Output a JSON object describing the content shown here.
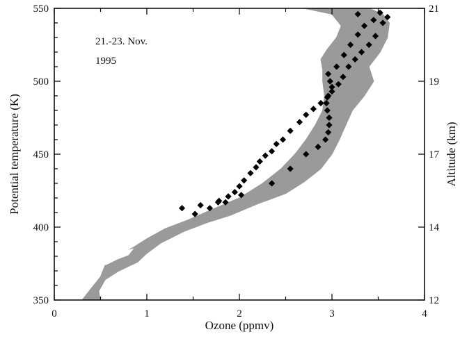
{
  "chart_data": {
    "type": "scatter",
    "xlabel": "Ozone (ppmv)",
    "ylabel": "Potential temperature (K)",
    "y2label": "Altitude (km)",
    "xlim": [
      0,
      4
    ],
    "ylim": [
      350,
      550
    ],
    "x_ticks": [
      "0",
      "1",
      "2",
      "3",
      "4"
    ],
    "y_ticks": [
      "350",
      "400",
      "450",
      "500",
      "550"
    ],
    "y2_ticks": [
      {
        "label": "12",
        "at_theta": 350
      },
      {
        "label": "14",
        "at_theta": 400
      },
      {
        "label": "17",
        "at_theta": 450
      },
      {
        "label": "19",
        "at_theta": 500
      },
      {
        "label": "21",
        "at_theta": 550
      }
    ],
    "annotation": [
      "21.-23. Nov.",
      "1995"
    ],
    "grid": false,
    "band_color": "#9a9a9a",
    "point_color": "#000000",
    "bands": [
      {
        "left": [
          [
            0.3,
            350
          ],
          [
            0.4,
            358
          ],
          [
            0.5,
            366
          ],
          [
            0.55,
            374
          ],
          [
            0.7,
            381
          ],
          [
            0.85,
            386
          ],
          [
            1.0,
            392
          ],
          [
            1.2,
            399
          ],
          [
            1.45,
            405
          ],
          [
            1.7,
            412
          ],
          [
            2.0,
            420
          ],
          [
            2.25,
            430
          ],
          [
            2.45,
            440
          ],
          [
            2.6,
            450
          ],
          [
            2.72,
            460
          ],
          [
            2.82,
            470
          ],
          [
            2.9,
            480
          ],
          [
            2.92,
            490
          ],
          [
            2.9,
            500
          ],
          [
            2.9,
            508
          ],
          [
            2.88,
            515
          ],
          [
            2.95,
            522
          ],
          [
            3.05,
            530
          ],
          [
            3.1,
            538
          ],
          [
            3.0,
            546
          ],
          [
            2.7,
            550
          ]
        ],
        "right": [
          [
            0.5,
            350
          ],
          [
            0.48,
            356
          ],
          [
            0.55,
            364
          ],
          [
            0.7,
            370
          ],
          [
            0.9,
            376
          ],
          [
            1.0,
            382
          ],
          [
            1.15,
            389
          ],
          [
            1.4,
            397
          ],
          [
            1.65,
            403
          ],
          [
            1.9,
            408
          ],
          [
            2.2,
            416
          ],
          [
            2.5,
            423
          ],
          [
            2.7,
            431
          ],
          [
            2.88,
            440
          ],
          [
            3.0,
            450
          ],
          [
            3.08,
            460
          ],
          [
            3.15,
            470
          ],
          [
            3.22,
            480
          ],
          [
            3.35,
            490
          ],
          [
            3.45,
            500
          ],
          [
            3.4,
            510
          ],
          [
            3.52,
            520
          ],
          [
            3.6,
            530
          ],
          [
            3.62,
            540
          ],
          [
            3.55,
            546
          ],
          [
            3.4,
            550
          ]
        ]
      },
      {
        "left": [
          [
            0.55,
            374
          ],
          [
            0.68,
            378
          ],
          [
            0.8,
            381
          ]
        ],
        "right": [
          [
            0.55,
            374
          ],
          [
            0.72,
            383
          ],
          [
            0.85,
            385
          ]
        ]
      }
    ],
    "points": [
      [
        1.38,
        413
      ],
      [
        1.52,
        409
      ],
      [
        1.58,
        415
      ],
      [
        1.68,
        413
      ],
      [
        1.78,
        418
      ],
      [
        1.85,
        417
      ],
      [
        1.88,
        421
      ],
      [
        1.95,
        424
      ],
      [
        2.0,
        428
      ],
      [
        2.05,
        432
      ],
      [
        2.12,
        437
      ],
      [
        2.18,
        441
      ],
      [
        2.22,
        445
      ],
      [
        2.28,
        449
      ],
      [
        2.35,
        452
      ],
      [
        2.4,
        457
      ],
      [
        2.47,
        460
      ],
      [
        2.55,
        466
      ],
      [
        2.65,
        472
      ],
      [
        2.72,
        477
      ],
      [
        2.8,
        481
      ],
      [
        2.88,
        485
      ],
      [
        2.95,
        489
      ],
      [
        3.0,
        493
      ],
      [
        3.07,
        498
      ],
      [
        3.12,
        503
      ],
      [
        3.18,
        510
      ],
      [
        3.25,
        515
      ],
      [
        3.32,
        520
      ],
      [
        3.4,
        525
      ],
      [
        3.47,
        531
      ],
      [
        3.55,
        540
      ],
      [
        3.6,
        544
      ],
      [
        1.77,
        417
      ],
      [
        2.02,
        422
      ],
      [
        2.35,
        430
      ],
      [
        2.55,
        440
      ],
      [
        2.72,
        450
      ],
      [
        2.85,
        455
      ],
      [
        2.93,
        460
      ],
      [
        2.96,
        465
      ],
      [
        2.97,
        470
      ],
      [
        2.97,
        475
      ],
      [
        2.95,
        480
      ],
      [
        2.94,
        485
      ],
      [
        2.96,
        490
      ],
      [
        3.0,
        496
      ],
      [
        2.98,
        500
      ],
      [
        2.96,
        505
      ],
      [
        3.05,
        510
      ],
      [
        3.13,
        518
      ],
      [
        3.2,
        525
      ],
      [
        3.28,
        532
      ],
      [
        3.35,
        538
      ],
      [
        3.45,
        542
      ],
      [
        3.52,
        547
      ],
      [
        3.28,
        546
      ]
    ]
  }
}
